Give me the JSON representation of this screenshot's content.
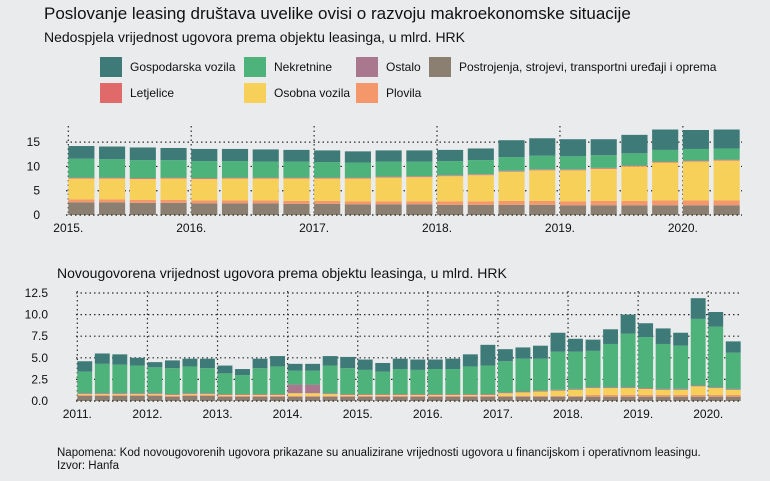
{
  "title": "Poslovanje leasing društava uvelike ovisi o razvoju makroekonomske situacije",
  "subtitle1": "Nedospjela vrijednost ugovora prema objektu leasinga, u mlrd. HRK",
  "subtitle2": "Novougovorena vrijednost ugovora prema objektu leasinga, u mlrd. HRK",
  "note": "Napomena: Kod novougovorenih ugovora prikazane su anualizirane vrijednosti ugovora u financijskom i operativnom leasingu.",
  "source": "Izvor: Hanfa",
  "colors": {
    "Postrojenja, strojevi, transportni uređaji i oprema": "#8b7f71",
    "Plovila": "#f4976b",
    "Osobna vozila": "#f7d05a",
    "Letjelice": "#e06a6a",
    "Ostalo": "#a9788f",
    "Nekretnine": "#4db37a",
    "Gospodarska vozila": "#3e7b78"
  },
  "legend": [
    {
      "label": "Gospodarska vozila",
      "key": "Gospodarska vozila"
    },
    {
      "label": "Nekretnine",
      "key": "Nekretnine"
    },
    {
      "label": "Ostalo",
      "key": "Ostalo"
    },
    {
      "label": "Postrojenja, strojevi, transportni uređaji i oprema",
      "key": "Postrojenja, strojevi, transportni uređaji i oprema"
    },
    {
      "label": "Letjelice",
      "key": "Letjelice"
    },
    {
      "label": "Osobna vozila",
      "key": "Osobna vozila"
    },
    {
      "label": "Plovila",
      "key": "Plovila"
    }
  ],
  "chart_data": [
    {
      "type": "bar",
      "stacked": true,
      "title": "Nedospjela vrijednost ugovora prema objektu leasinga, u mlrd. HRK",
      "categories": [
        "2015Q1",
        "2015Q2",
        "2015Q3",
        "2015Q4",
        "2016Q1",
        "2016Q2",
        "2016Q3",
        "2016Q4",
        "2017Q1",
        "2017Q2",
        "2017Q3",
        "2017Q4",
        "2018Q1",
        "2018Q2",
        "2018Q3",
        "2018Q4",
        "2019Q1",
        "2019Q2",
        "2019Q3",
        "2019Q4",
        "2020Q1",
        "2020Q2"
      ],
      "x_tick_labels": [
        "2015.",
        "2016.",
        "2017.",
        "2018.",
        "2019.",
        "2020."
      ],
      "y_ticks": [
        0,
        5,
        10,
        15
      ],
      "ylim": [
        0,
        17.5
      ],
      "series": [
        {
          "name": "Postrojenja, strojevi, transportni uređaji i oprema",
          "values": [
            2.6,
            2.6,
            2.5,
            2.5,
            2.4,
            2.4,
            2.4,
            2.3,
            2.3,
            2.2,
            2.2,
            2.2,
            2.1,
            2.1,
            2.1,
            2.1,
            2.0,
            2.0,
            2.0,
            2.0,
            2.0,
            2.0
          ]
        },
        {
          "name": "Plovila",
          "values": [
            0.6,
            0.6,
            0.6,
            0.6,
            0.6,
            0.6,
            0.6,
            0.6,
            0.6,
            0.6,
            0.6,
            0.6,
            0.7,
            0.7,
            0.8,
            0.8,
            0.8,
            0.9,
            0.9,
            1.0,
            1.0,
            1.0
          ]
        },
        {
          "name": "Osobna vozila",
          "values": [
            4.3,
            4.3,
            4.3,
            4.4,
            4.4,
            4.5,
            4.5,
            4.6,
            4.6,
            4.7,
            4.9,
            5.0,
            5.2,
            5.4,
            6.0,
            6.3,
            6.4,
            6.6,
            7.1,
            7.8,
            8.0,
            8.2
          ]
        },
        {
          "name": "Letjelice",
          "values": [
            0.1,
            0.1,
            0.1,
            0.1,
            0.1,
            0.1,
            0.1,
            0.1,
            0.1,
            0.1,
            0.1,
            0.1,
            0.1,
            0.1,
            0.1,
            0.1,
            0.1,
            0.1,
            0.1,
            0.1,
            0.1,
            0.1
          ]
        },
        {
          "name": "Ostalo",
          "values": [
            0.1,
            0.1,
            0.1,
            0.1,
            0.1,
            0.1,
            0.1,
            0.1,
            0.1,
            0.1,
            0.1,
            0.1,
            0.1,
            0.1,
            0.1,
            0.1,
            0.1,
            0.1,
            0.1,
            0.1,
            0.1,
            0.1
          ]
        },
        {
          "name": "Nekretnine",
          "values": [
            3.9,
            3.8,
            3.7,
            3.6,
            3.5,
            3.4,
            3.3,
            3.3,
            3.2,
            3.1,
            3.1,
            3.0,
            2.9,
            2.9,
            2.8,
            2.8,
            2.7,
            2.6,
            2.5,
            2.4,
            2.4,
            2.3
          ]
        },
        {
          "name": "Gospodarska vozila",
          "values": [
            2.6,
            2.6,
            2.6,
            2.5,
            2.5,
            2.5,
            2.5,
            2.4,
            2.4,
            2.3,
            2.3,
            2.3,
            2.3,
            2.4,
            3.5,
            3.6,
            3.5,
            3.3,
            3.8,
            4.2,
            3.9,
            3.9
          ]
        }
      ]
    },
    {
      "type": "bar",
      "stacked": true,
      "title": "Novougovorena vrijednost ugovora prema objektu leasinga, u mlrd. HRK",
      "categories": [
        "2011Q1",
        "2011Q2",
        "2011Q3",
        "2011Q4",
        "2012Q1",
        "2012Q2",
        "2012Q3",
        "2012Q4",
        "2013Q1",
        "2013Q2",
        "2013Q3",
        "2013Q4",
        "2014Q1",
        "2014Q2",
        "2014Q3",
        "2014Q4",
        "2015Q1",
        "2015Q2",
        "2015Q3",
        "2015Q4",
        "2016Q1",
        "2016Q2",
        "2016Q3",
        "2016Q4",
        "2017Q1",
        "2017Q2",
        "2017Q3",
        "2017Q4",
        "2018Q1",
        "2018Q2",
        "2018Q3",
        "2018Q4",
        "2019Q1",
        "2019Q2",
        "2019Q3",
        "2019Q4",
        "2020Q1",
        "2020Q2"
      ],
      "x_tick_labels": [
        "2011.",
        "2012.",
        "2013.",
        "2014.",
        "2015.",
        "2016.",
        "2017.",
        "2018.",
        "2019.",
        "2020."
      ],
      "y_ticks": [
        0.0,
        2.5,
        5.0,
        7.5,
        10.0,
        12.5
      ],
      "ylim": [
        0,
        12.5
      ],
      "series": [
        {
          "name": "Postrojenja, strojevi, transportni uređaji i oprema",
          "values": [
            0.6,
            0.6,
            0.6,
            0.6,
            0.6,
            0.5,
            0.6,
            0.6,
            0.5,
            0.5,
            0.5,
            0.5,
            0.5,
            0.5,
            0.5,
            0.5,
            0.5,
            0.5,
            0.5,
            0.5,
            0.5,
            0.5,
            0.5,
            0.5,
            0.5,
            0.5,
            0.5,
            0.5,
            0.5,
            0.5,
            0.5,
            0.5,
            0.5,
            0.5,
            0.5,
            0.5,
            0.5,
            0.5
          ]
        },
        {
          "name": "Plovila",
          "values": [
            0.1,
            0.1,
            0.1,
            0.1,
            0.1,
            0.1,
            0.1,
            0.1,
            0.1,
            0.1,
            0.1,
            0.1,
            0.1,
            0.1,
            0.1,
            0.1,
            0.1,
            0.1,
            0.1,
            0.1,
            0.1,
            0.1,
            0.1,
            0.1,
            0.1,
            0.1,
            0.1,
            0.1,
            0.1,
            0.2,
            0.2,
            0.2,
            0.2,
            0.2,
            0.2,
            0.2,
            0.2,
            0.2
          ]
        },
        {
          "name": "Osobna vozila",
          "values": [
            0.1,
            0.1,
            0.1,
            0.1,
            0.1,
            0.1,
            0.1,
            0.1,
            0.1,
            0.1,
            0.1,
            0.1,
            0.3,
            0.3,
            0.2,
            0.1,
            0.1,
            0.1,
            0.1,
            0.1,
            0.1,
            0.1,
            0.1,
            0.1,
            0.3,
            0.4,
            0.5,
            0.6,
            0.7,
            0.8,
            0.8,
            0.8,
            0.7,
            0.6,
            0.6,
            1.0,
            0.8,
            0.6
          ]
        },
        {
          "name": "Letjelice",
          "values": [
            0,
            0,
            0,
            0,
            0,
            0,
            0,
            0,
            0,
            0,
            0,
            0,
            0,
            0,
            0,
            0,
            0,
            0,
            0,
            0,
            0,
            0,
            0,
            0,
            0,
            0,
            0,
            0,
            0,
            0,
            0,
            0,
            0,
            0,
            0,
            0,
            0,
            0
          ]
        },
        {
          "name": "Ostalo",
          "values": [
            0.1,
            0.1,
            0.1,
            0.1,
            0.1,
            0.1,
            0.1,
            0.1,
            0.1,
            0.1,
            0.1,
            0.1,
            1.0,
            1.0,
            0.1,
            0.1,
            0.1,
            0.1,
            0.1,
            0.1,
            0.1,
            0.1,
            0.1,
            0.1,
            0.1,
            0.1,
            0.1,
            0.1,
            0.1,
            0.1,
            0.1,
            0.1,
            0.1,
            0.1,
            0.1,
            0.1,
            0.1,
            0.1
          ]
        },
        {
          "name": "Nekretnine",
          "values": [
            2.5,
            3.4,
            3.3,
            3.2,
            3.0,
            3.0,
            3.1,
            2.9,
            2.4,
            2.2,
            3.0,
            3.2,
            1.6,
            1.6,
            3.2,
            3.0,
            2.8,
            2.6,
            2.9,
            2.8,
            2.9,
            2.9,
            3.2,
            3.3,
            3.6,
            3.8,
            3.7,
            4.4,
            4.3,
            4.2,
            5.0,
            6.2,
            5.9,
            5.2,
            5.0,
            7.7,
            7.0,
            4.2
          ]
        },
        {
          "name": "Gospodarska vozila",
          "values": [
            1.2,
            1.2,
            1.2,
            0.9,
            0.6,
            0.9,
            0.9,
            1.1,
            0.9,
            0.7,
            1.1,
            1.2,
            0.8,
            0.8,
            1.1,
            1.3,
            1.2,
            1.0,
            1.2,
            1.2,
            1.1,
            1.2,
            1.4,
            2.4,
            1.4,
            1.3,
            1.5,
            2.2,
            1.5,
            1.3,
            1.7,
            2.2,
            1.6,
            1.8,
            1.5,
            2.4,
            1.7,
            1.3
          ]
        }
      ]
    }
  ]
}
